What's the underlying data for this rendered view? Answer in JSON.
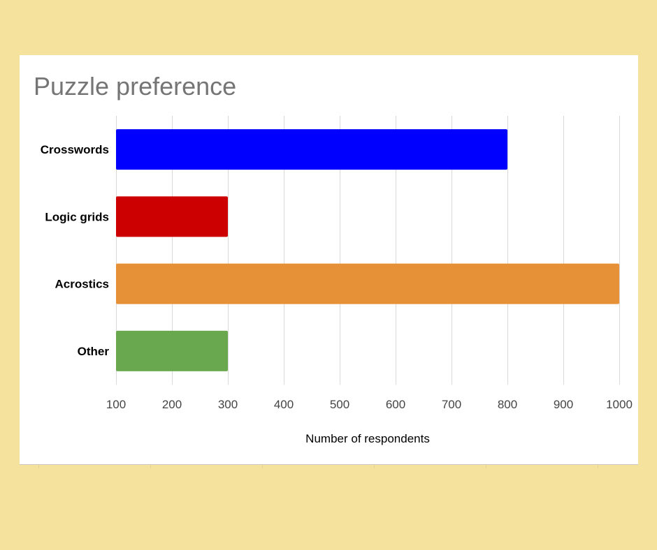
{
  "chart_data": {
    "type": "bar",
    "orientation": "horizontal",
    "title": "Puzzle preference",
    "xlabel": "Number of respondents",
    "ylabel": "",
    "categories": [
      "Crosswords",
      "Logic grids",
      "Acrostics",
      "Other"
    ],
    "values": [
      800,
      300,
      1000,
      300
    ],
    "colors": [
      "#0000ff",
      "#cc0000",
      "#e69138",
      "#6aa84f"
    ],
    "xlim": [
      100,
      1000
    ],
    "xticks": [
      100,
      200,
      300,
      400,
      500,
      600,
      700,
      800,
      900,
      1000
    ],
    "xtick_labels": [
      "100",
      "200",
      "300",
      "400",
      "500",
      "600",
      "700",
      "800",
      "900",
      "1000"
    ],
    "grid": true,
    "legend": "none"
  },
  "colors": {
    "page_background": "#f5e29d",
    "card_background": "#ffffff",
    "title_text": "#757575",
    "gridline": "#d9d9d9",
    "category_text": "#000000",
    "tick_text": "#444444"
  }
}
